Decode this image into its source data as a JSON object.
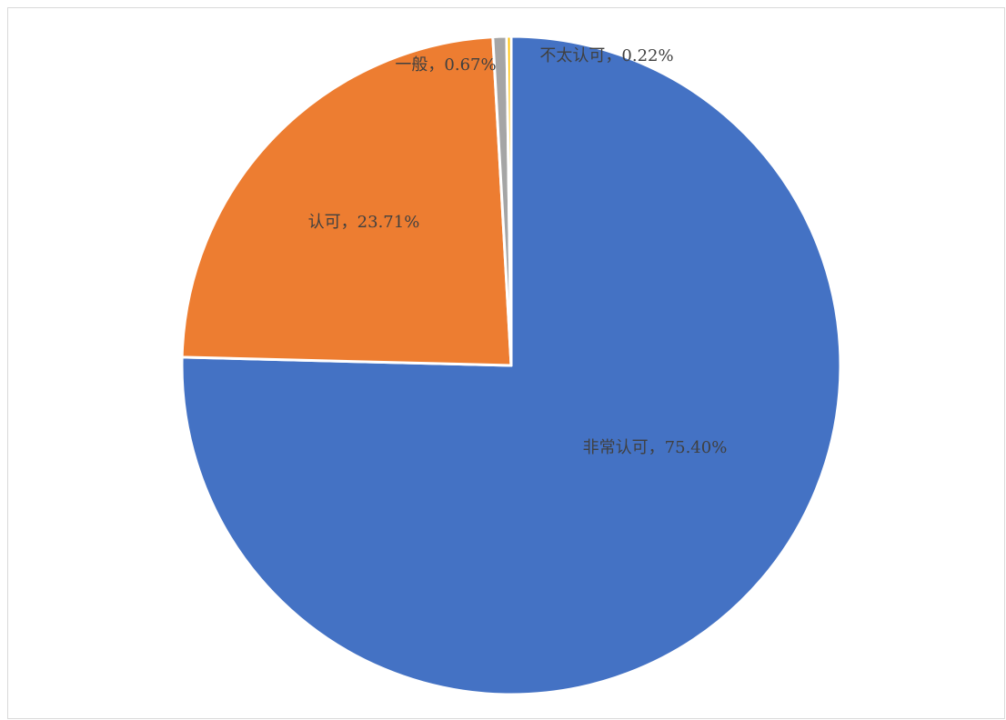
{
  "chart_data": {
    "type": "pie",
    "categories": [
      "非常认可",
      "认可",
      "一般",
      "不太认可"
    ],
    "values": [
      75.4,
      23.71,
      0.67,
      0.22
    ],
    "value_labels": [
      "非常认可，75.40%",
      "认可，23.71%",
      "一般，0.67%",
      "不太认可，0.22%"
    ],
    "colors": [
      "#4472c4",
      "#ed7d31",
      "#a5a5a5",
      "#ffc000"
    ]
  }
}
